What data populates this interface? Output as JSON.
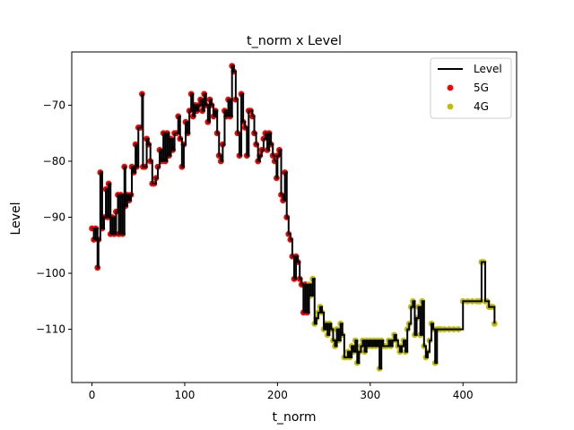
{
  "chart_data": {
    "type": "line",
    "title": "t_norm x Level",
    "xlabel": "t_norm",
    "ylabel": "Level",
    "xlim": [
      -21.8,
      457.8
    ],
    "ylim": [
      -119.5,
      -60.5
    ],
    "xticks": [
      0,
      100,
      200,
      300,
      400
    ],
    "yticks": [
      -110,
      -100,
      -90,
      -80,
      -70
    ],
    "grid": false,
    "legend_position": "top-right",
    "series": [
      {
        "name": "Level",
        "kind": "line",
        "color": "#000000"
      },
      {
        "name": "5G",
        "kind": "scatter",
        "color": "#ff0000"
      },
      {
        "name": "4G",
        "kind": "scatter",
        "color": "#bfbf00"
      }
    ],
    "points": [
      [
        0,
        -92,
        "5G"
      ],
      [
        2,
        -94,
        "5G"
      ],
      [
        4,
        -92,
        "5G"
      ],
      [
        6,
        -99,
        "5G"
      ],
      [
        7,
        -94,
        "5G"
      ],
      [
        9,
        -82,
        "5G"
      ],
      [
        11,
        -92,
        "5G"
      ],
      [
        13,
        -90,
        "5G"
      ],
      [
        15,
        -85,
        "5G"
      ],
      [
        17,
        -90,
        "5G"
      ],
      [
        18,
        -84,
        "5G"
      ],
      [
        20,
        -93,
        "5G"
      ],
      [
        22,
        -90,
        "5G"
      ],
      [
        24,
        -93,
        "5G"
      ],
      [
        26,
        -89,
        "5G"
      ],
      [
        28,
        -86,
        "5G"
      ],
      [
        29,
        -93,
        "5G"
      ],
      [
        31,
        -86,
        "5G"
      ],
      [
        33,
        -93,
        "5G"
      ],
      [
        35,
        -81,
        "5G"
      ],
      [
        36,
        -88,
        "5G"
      ],
      [
        38,
        -86,
        "5G"
      ],
      [
        40,
        -87,
        "5G"
      ],
      [
        42,
        -86,
        "5G"
      ],
      [
        43,
        -81,
        "5G"
      ],
      [
        45,
        -82,
        "5G"
      ],
      [
        47,
        -77,
        "5G"
      ],
      [
        48,
        -81,
        "5G"
      ],
      [
        50,
        -74,
        "5G"
      ],
      [
        52,
        -74,
        "5G"
      ],
      [
        54,
        -68,
        "5G"
      ],
      [
        55,
        -81,
        "5G"
      ],
      [
        57,
        -81,
        "5G"
      ],
      [
        59,
        -76,
        "5G"
      ],
      [
        61,
        -77,
        "5G"
      ],
      [
        63,
        -80,
        "5G"
      ],
      [
        65,
        -84,
        "5G"
      ],
      [
        67,
        -84,
        "5G"
      ],
      [
        69,
        -83,
        "5G"
      ],
      [
        71,
        -81,
        "5G"
      ],
      [
        73,
        -78,
        "5G"
      ],
      [
        75,
        -80,
        "5G"
      ],
      [
        77,
        -75,
        "5G"
      ],
      [
        79,
        -80,
        "5G"
      ],
      [
        81,
        -75,
        "5G"
      ],
      [
        83,
        -79,
        "5G"
      ],
      [
        85,
        -76,
        "5G"
      ],
      [
        87,
        -78,
        "5G"
      ],
      [
        89,
        -75,
        "5G"
      ],
      [
        91,
        -75,
        "5G"
      ],
      [
        93,
        -72,
        "5G"
      ],
      [
        95,
        -76,
        "5G"
      ],
      [
        97,
        -81,
        "5G"
      ],
      [
        99,
        -77,
        "5G"
      ],
      [
        101,
        -73,
        "5G"
      ],
      [
        103,
        -75,
        "5G"
      ],
      [
        105,
        -71,
        "5G"
      ],
      [
        107,
        -68,
        "5G"
      ],
      [
        109,
        -72,
        "5G"
      ],
      [
        111,
        -70,
        "5G"
      ],
      [
        113,
        -71,
        "5G"
      ],
      [
        115,
        -70,
        "5G"
      ],
      [
        117,
        -69,
        "5G"
      ],
      [
        119,
        -71,
        "5G"
      ],
      [
        121,
        -68,
        "5G"
      ],
      [
        123,
        -70,
        "5G"
      ],
      [
        125,
        -73,
        "5G"
      ],
      [
        127,
        -69,
        "5G"
      ],
      [
        129,
        -70,
        "5G"
      ],
      [
        131,
        -72,
        "5G"
      ],
      [
        133,
        -71,
        "5G"
      ],
      [
        135,
        -75,
        "5G"
      ],
      [
        137,
        -79,
        "5G"
      ],
      [
        139,
        -80,
        "5G"
      ],
      [
        141,
        -77,
        "5G"
      ],
      [
        143,
        -71,
        "5G"
      ],
      [
        145,
        -72,
        "5G"
      ],
      [
        147,
        -69,
        "5G"
      ],
      [
        149,
        -72,
        "5G"
      ],
      [
        151,
        -63,
        "5G"
      ],
      [
        153,
        -64,
        "5G"
      ],
      [
        155,
        -69,
        "5G"
      ],
      [
        157,
        -75,
        "5G"
      ],
      [
        159,
        -79,
        "5G"
      ],
      [
        161,
        -68,
        "5G"
      ],
      [
        163,
        -73,
        "5G"
      ],
      [
        165,
        -74,
        "5G"
      ],
      [
        167,
        -79,
        "5G"
      ],
      [
        169,
        -71,
        "5G"
      ],
      [
        171,
        -71,
        "5G"
      ],
      [
        173,
        -72,
        "5G"
      ],
      [
        175,
        -75,
        "5G"
      ],
      [
        177,
        -77,
        "5G"
      ],
      [
        179,
        -80,
        "5G"
      ],
      [
        181,
        -79,
        "5G"
      ],
      [
        183,
        -78,
        "5G"
      ],
      [
        185,
        -76,
        "5G"
      ],
      [
        187,
        -75,
        "5G"
      ],
      [
        189,
        -78,
        "5G"
      ],
      [
        191,
        -75,
        "5G"
      ],
      [
        193,
        -77,
        "5G"
      ],
      [
        195,
        -79,
        "5G"
      ],
      [
        197,
        -80,
        "5G"
      ],
      [
        199,
        -83,
        "5G"
      ],
      [
        200,
        -79,
        "5G"
      ],
      [
        202,
        -78,
        "5G"
      ],
      [
        204,
        -86,
        "5G"
      ],
      [
        206,
        -87,
        "5G"
      ],
      [
        208,
        -82,
        "5G"
      ],
      [
        210,
        -90,
        "5G"
      ],
      [
        212,
        -93,
        "5G"
      ],
      [
        214,
        -94,
        "5G"
      ],
      [
        216,
        -97,
        "5G"
      ],
      [
        218,
        -101,
        "5G"
      ],
      [
        220,
        -97,
        "5G"
      ],
      [
        222,
        -98,
        "5G"
      ],
      [
        224,
        -101,
        "5G"
      ],
      [
        226,
        -102,
        "5G"
      ],
      [
        228,
        -107,
        "5G"
      ],
      [
        230,
        -102,
        "5G"
      ],
      [
        232,
        -107,
        "5G"
      ],
      [
        234,
        -102,
        "4G"
      ],
      [
        236,
        -104,
        "4G"
      ],
      [
        238,
        -101,
        "4G"
      ],
      [
        240,
        -109,
        "4G"
      ],
      [
        242,
        -108,
        "4G"
      ],
      [
        244,
        -107,
        "4G"
      ],
      [
        246,
        -106,
        "4G"
      ],
      [
        248,
        -107,
        "4G"
      ],
      [
        250,
        -110,
        "4G"
      ],
      [
        252,
        -109,
        "4G"
      ],
      [
        254,
        -111,
        "4G"
      ],
      [
        256,
        -109,
        "4G"
      ],
      [
        258,
        -110,
        "4G"
      ],
      [
        260,
        -112,
        "4G"
      ],
      [
        262,
        -113,
        "4G"
      ],
      [
        264,
        -110,
        "4G"
      ],
      [
        266,
        -112,
        "4G"
      ],
      [
        268,
        -109,
        "4G"
      ],
      [
        270,
        -111,
        "4G"
      ],
      [
        272,
        -115,
        "4G"
      ],
      [
        274,
        -115,
        "4G"
      ],
      [
        276,
        -114,
        "4G"
      ],
      [
        278,
        -115,
        "4G"
      ],
      [
        280,
        -113,
        "4G"
      ],
      [
        282,
        -114,
        "4G"
      ],
      [
        284,
        -112,
        "4G"
      ],
      [
        286,
        -116,
        "4G"
      ],
      [
        288,
        -114,
        "4G"
      ],
      [
        290,
        -113,
        "4G"
      ],
      [
        292,
        -112,
        "4G"
      ],
      [
        294,
        -114,
        "4G"
      ],
      [
        296,
        -112,
        "4G"
      ],
      [
        298,
        -113,
        "4G"
      ],
      [
        300,
        -112,
        "4G"
      ],
      [
        302,
        -113,
        "4G"
      ],
      [
        304,
        -112,
        "4G"
      ],
      [
        306,
        -113,
        "4G"
      ],
      [
        308,
        -112,
        "4G"
      ],
      [
        310,
        -117,
        "4G"
      ],
      [
        312,
        -112,
        "4G"
      ],
      [
        314,
        -113,
        "4G"
      ],
      [
        316,
        -113,
        "4G"
      ],
      [
        318,
        -113,
        "4G"
      ],
      [
        320,
        -112,
        "4G"
      ],
      [
        322,
        -113,
        "4G"
      ],
      [
        324,
        -112,
        "4G"
      ],
      [
        326,
        -111,
        "4G"
      ],
      [
        328,
        -112,
        "4G"
      ],
      [
        330,
        -113,
        "4G"
      ],
      [
        332,
        -114,
        "4G"
      ],
      [
        334,
        -113,
        "4G"
      ],
      [
        336,
        -112,
        "4G"
      ],
      [
        338,
        -114,
        "4G"
      ],
      [
        340,
        -110,
        "4G"
      ],
      [
        342,
        -109,
        "4G"
      ],
      [
        344,
        -106,
        "4G"
      ],
      [
        346,
        -105,
        "4G"
      ],
      [
        348,
        -111,
        "4G"
      ],
      [
        350,
        -108,
        "4G"
      ],
      [
        352,
        -106,
        "4G"
      ],
      [
        354,
        -111,
        "4G"
      ],
      [
        356,
        -105,
        "4G"
      ],
      [
        358,
        -113,
        "4G"
      ],
      [
        360,
        -115,
        "4G"
      ],
      [
        362,
        -114,
        "4G"
      ],
      [
        364,
        -112,
        "4G"
      ],
      [
        366,
        -109,
        "4G"
      ],
      [
        368,
        -110,
        "4G"
      ],
      [
        370,
        -116,
        "4G"
      ],
      [
        372,
        -110,
        "4G"
      ],
      [
        374,
        -110,
        "4G"
      ],
      [
        376,
        -110,
        "4G"
      ],
      [
        380,
        -110,
        "4G"
      ],
      [
        385,
        -110,
        "4G"
      ],
      [
        390,
        -110,
        "4G"
      ],
      [
        395,
        -110,
        "4G"
      ],
      [
        400,
        -105,
        "4G"
      ],
      [
        405,
        -105,
        "4G"
      ],
      [
        410,
        -105,
        "4G"
      ],
      [
        415,
        -105,
        "4G"
      ],
      [
        418,
        -105,
        "4G"
      ],
      [
        420,
        -98,
        "4G"
      ],
      [
        422,
        -98,
        "4G"
      ],
      [
        424,
        -105,
        "4G"
      ],
      [
        426,
        -105,
        "4G"
      ],
      [
        428,
        -106,
        "4G"
      ],
      [
        430,
        -106,
        "4G"
      ],
      [
        432,
        -106,
        "4G"
      ],
      [
        434,
        -109,
        "4G"
      ]
    ]
  }
}
